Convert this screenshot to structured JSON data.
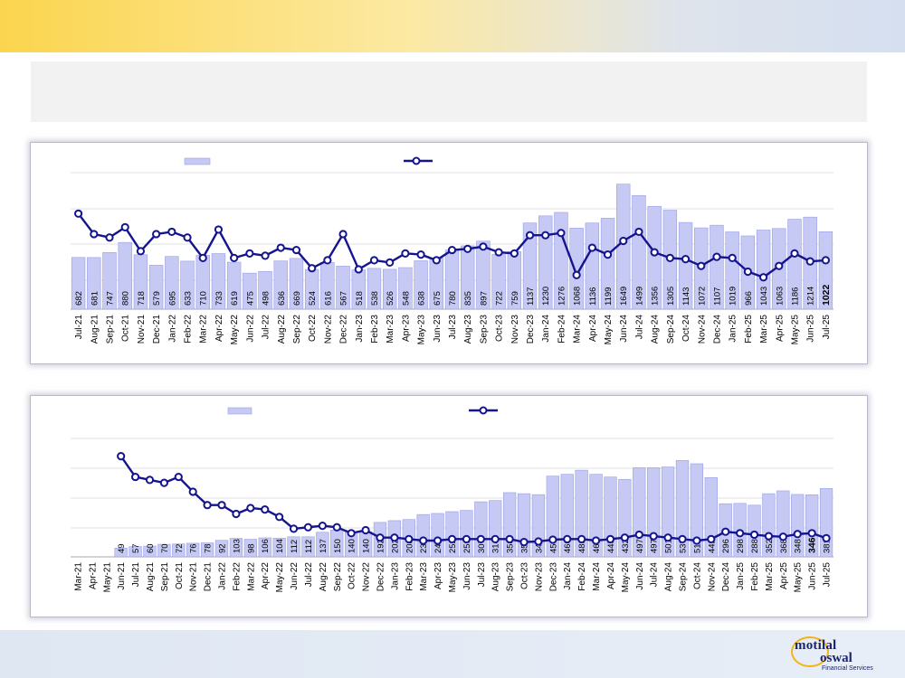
{
  "chart_data": [
    {
      "type": "bar",
      "categories": [
        "Jul-21",
        "Aug-21",
        "Sep-21",
        "Oct-21",
        "Nov-21",
        "Dec-21",
        "Jan-22",
        "Feb-22",
        "Mar-22",
        "Apr-22",
        "May-22",
        "Jun-22",
        "Jul-22",
        "Aug-22",
        "Sep-22",
        "Oct-22",
        "Nov-22",
        "Dec-22",
        "Jan-23",
        "Feb-23",
        "Mar-23",
        "Apr-23",
        "May-23",
        "Jun-23",
        "Jul-23",
        "Aug-23",
        "Sep-23",
        "Oct-23",
        "Nov-23",
        "Dec-23",
        "Jan-24",
        "Feb-24",
        "Mar-24",
        "Apr-24",
        "May-24",
        "Jun-24",
        "Jul-24",
        "Aug-24",
        "Sep-24",
        "Oct-24",
        "Nov-24",
        "Dec-24",
        "Jan-25",
        "Feb-25",
        "Mar-25",
        "Apr-25",
        "May-25",
        "Jun-25",
        "Jul-25"
      ],
      "series": [
        {
          "kind": "bar",
          "values": [
            682,
            681,
            747,
            880,
            718,
            579,
            695,
            633,
            710,
            733,
            619,
            475,
            498,
            636,
            669,
            524,
            616,
            567,
            518,
            538,
            526,
            548,
            638,
            675,
            780,
            835,
            897,
            722,
            759,
            1137,
            1230,
            1276,
            1068,
            1136,
            1199,
            1649,
            1499,
            1356,
            1305,
            1143,
            1072,
            1107,
            1019,
            966,
            1043,
            1063,
            1186,
            1214,
            1022
          ]
        },
        {
          "kind": "line",
          "values": [
            84,
            66,
            63,
            72,
            51,
            66,
            68,
            63,
            45,
            70,
            45,
            49,
            47,
            54,
            52,
            36,
            43,
            66,
            35,
            43,
            41,
            49,
            48,
            43,
            52,
            53,
            55,
            50,
            49,
            65,
            65,
            67,
            30,
            54,
            48,
            60,
            68,
            50,
            45,
            44,
            38,
            46,
            45,
            33,
            28,
            38,
            49,
            42,
            43
          ]
        }
      ],
      "bar_ylim": [
        0,
        1800
      ],
      "line_ylim": [
        0,
        120
      ],
      "highlight_index": 48
    },
    {
      "type": "bar",
      "categories": [
        "Mar-21",
        "Apr-21",
        "May-21",
        "Jun-21",
        "Jul-21",
        "Aug-21",
        "Sep-21",
        "Oct-21",
        "Nov-21",
        "Dec-21",
        "Jan-22",
        "Feb-22",
        "Mar-22",
        "Apr-22",
        "May-22",
        "Jun-22",
        "Jul-22",
        "Aug-22",
        "Sep-22",
        "Oct-22",
        "Nov-22",
        "Dec-22",
        "Jan-23",
        "Feb-23",
        "Mar-23",
        "Apr-23",
        "May-23",
        "Jun-23",
        "Jul-23",
        "Aug-23",
        "Sep-23",
        "Oct-23",
        "Nov-23",
        "Dec-23",
        "Jan-24",
        "Feb-24",
        "Mar-24",
        "Apr-24",
        "May-24",
        "Jun-24",
        "Jul-24",
        "Aug-24",
        "Sep-24",
        "Oct-24",
        "Nov-24",
        "Dec-24",
        "Jan-25",
        "Feb-25",
        "Mar-25",
        "Apr-25",
        "May-25",
        "Jun-25",
        "Jul-25"
      ],
      "series": [
        {
          "kind": "bar",
          "values": [
            null,
            null,
            null,
            49,
            57,
            60,
            70,
            72,
            76,
            78,
            92,
            103,
            98,
            106,
            104,
            112,
            112,
            137,
            150,
            140,
            140,
            192,
            202,
            208,
            236,
            242,
            252,
            259,
            307,
            314,
            358,
            352,
            347,
            450,
            460,
            483,
            460,
            445,
            432,
            497,
            497,
            501,
            537,
            519,
            442,
            296,
            298,
            288,
            352,
            368,
            348,
            346,
            381
          ]
        },
        {
          "kind": "line",
          "values": [
            null,
            null,
            null,
            34,
            27,
            26,
            25,
            27,
            22,
            17.5,
            17.5,
            14.5,
            16.5,
            16,
            13.5,
            9.5,
            10,
            10.5,
            10,
            8,
            9,
            6.5,
            6.5,
            6,
            5.5,
            5.5,
            6,
            6,
            6,
            6,
            6,
            5,
            5.2,
            5.8,
            6,
            6,
            5.5,
            6,
            6.5,
            7.5,
            7,
            6.5,
            6,
            5.5,
            6,
            8.5,
            8,
            7.5,
            7,
            6.8,
            7.7,
            8,
            6.3
          ]
        }
      ],
      "bar_ylim": [
        0,
        660
      ],
      "line_ylim": [
        0,
        40
      ],
      "highlight_index": 51
    }
  ]
}
